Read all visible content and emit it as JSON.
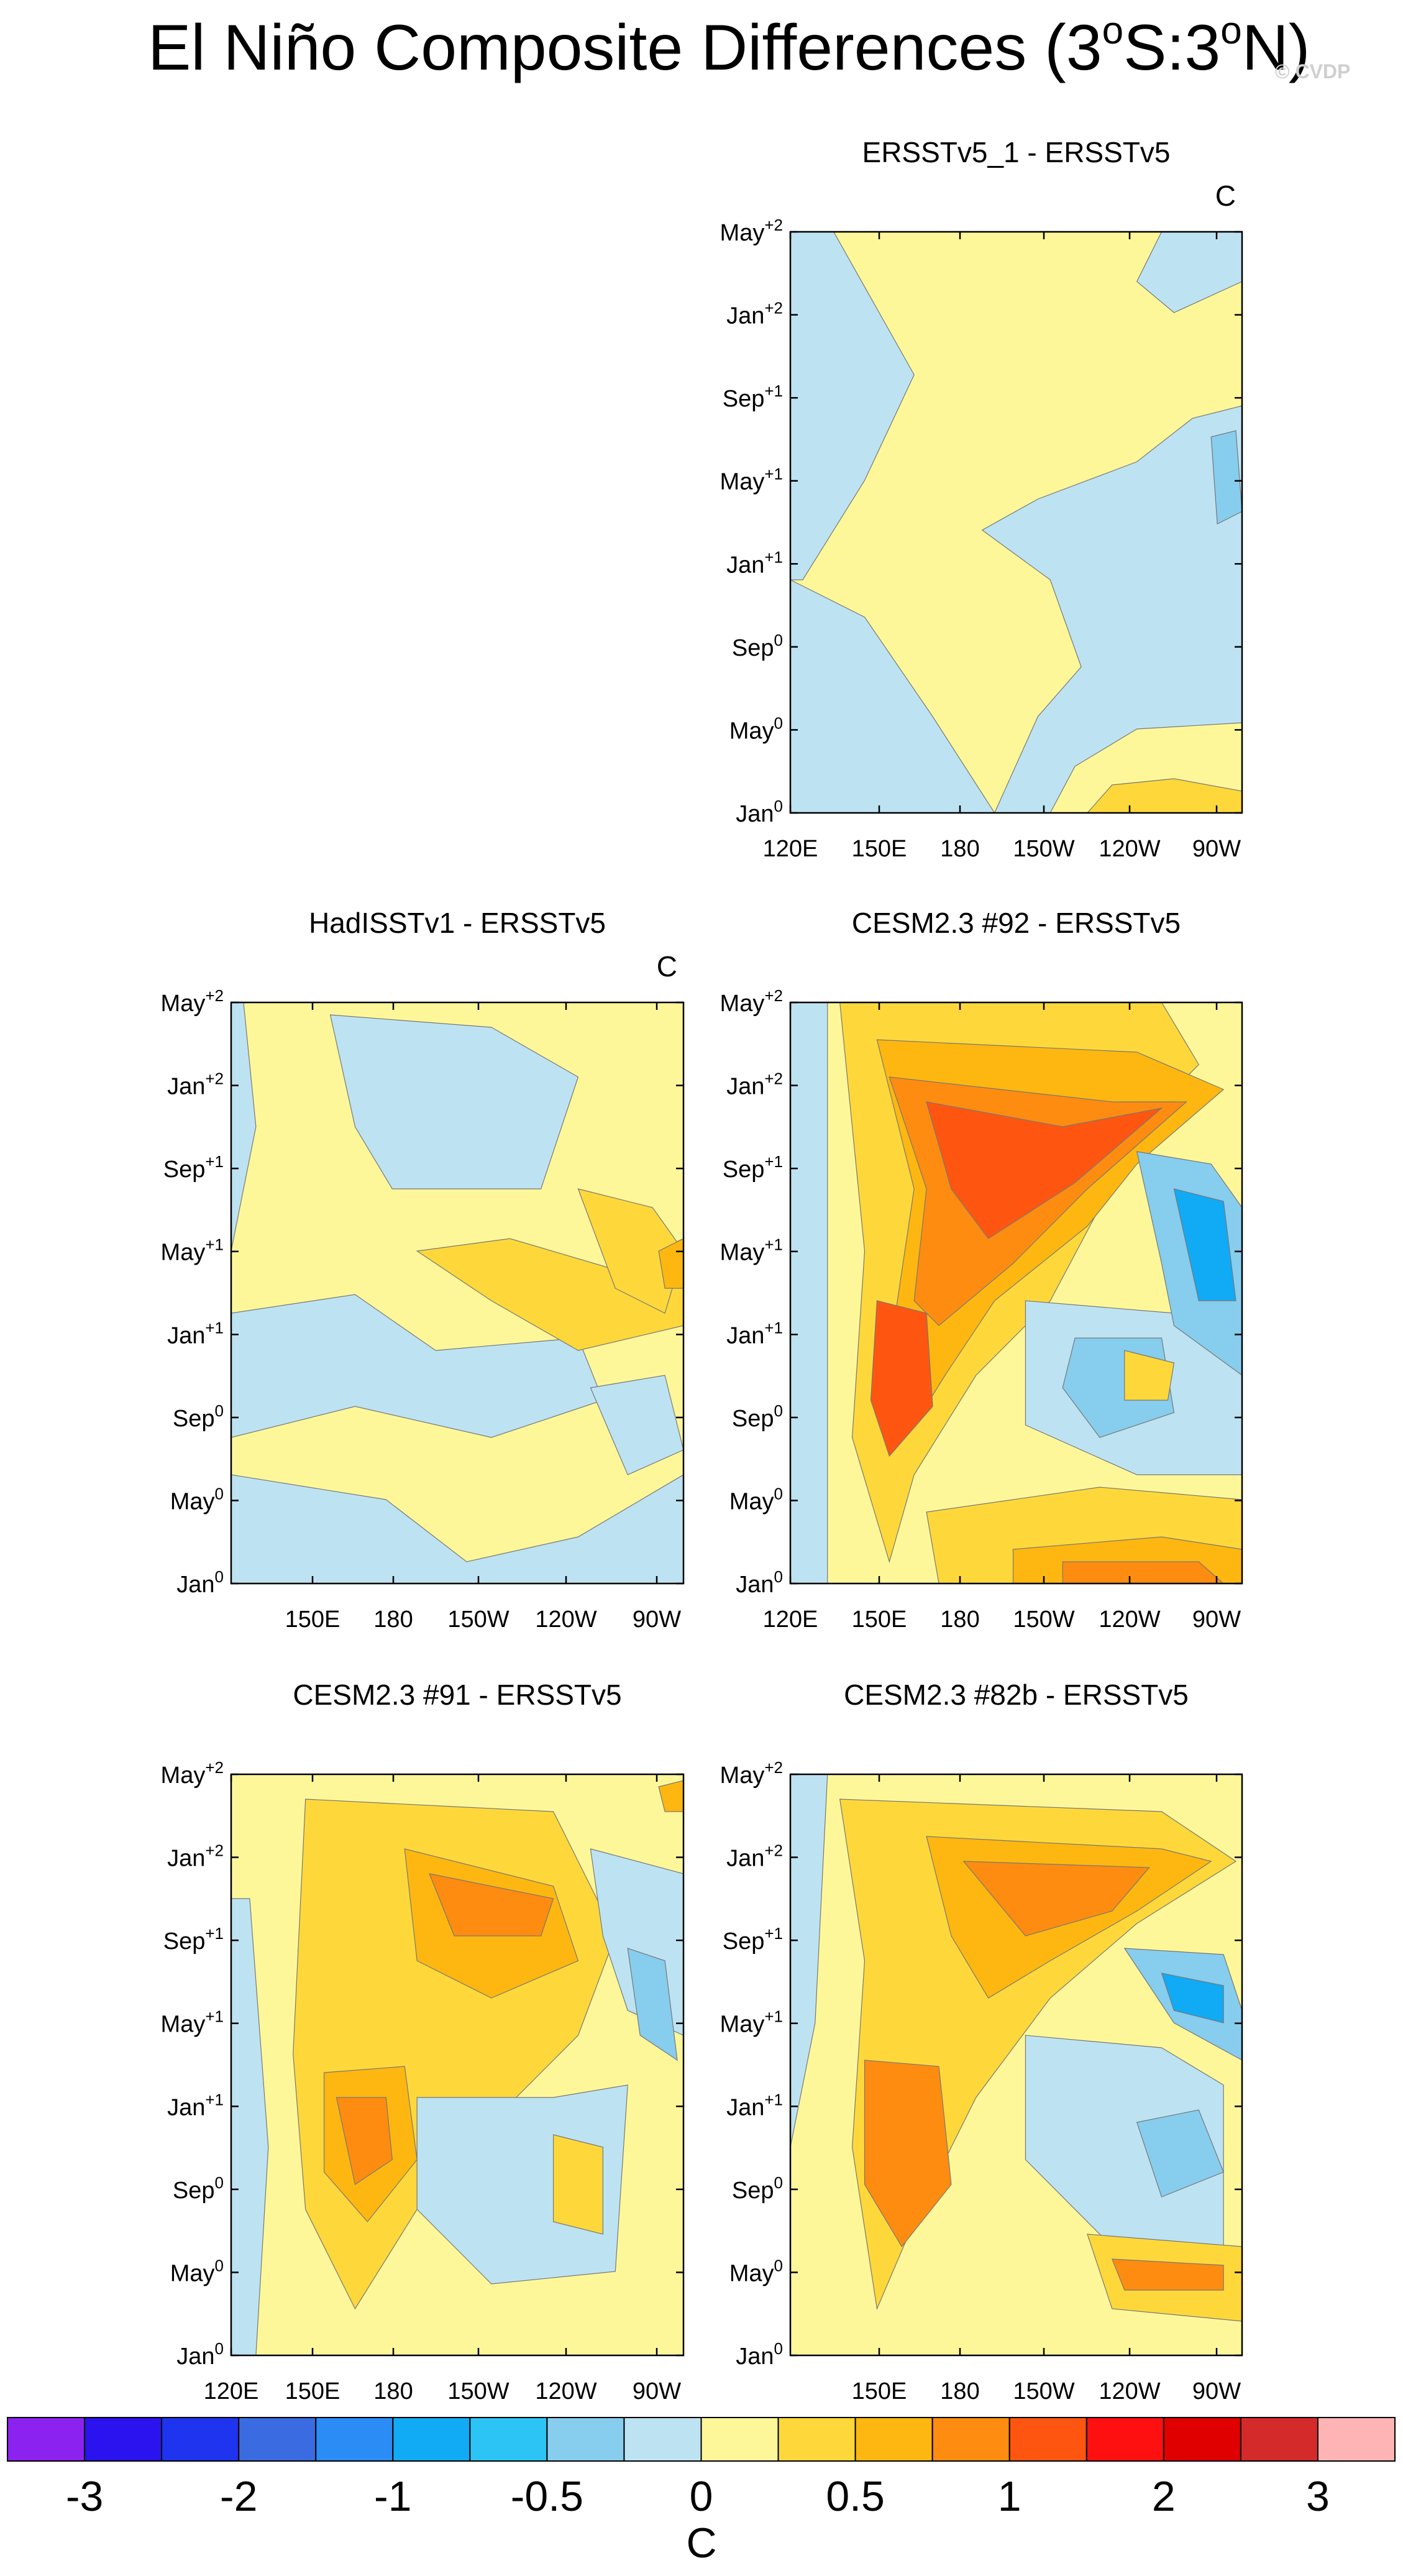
{
  "chart_data": {
    "type": "heatmap",
    "title": "El Niño Composite Differences (3°S:3°N)",
    "title_parts": {
      "main": "El Niño Composite Differences (3",
      "deg1": "o",
      "mid": "S:3",
      "deg2": "o",
      "end": "N)"
    },
    "watermark": "© CVDP",
    "colorbar": {
      "colors": [
        "#8c22f0",
        "#2a13ee",
        "#1e34ee",
        "#3b6be0",
        "#2b8cf5",
        "#10aaf5",
        "#2cc4f5",
        "#87cdee",
        "#bde3f2",
        "#fef799",
        "#fed83a",
        "#feb710",
        "#fe8c10",
        "#fe5610",
        "#fe1010",
        "#e00000",
        "#d42a2a",
        "#feb4b4"
      ],
      "labels": [
        "-3",
        "-2",
        "-1",
        "-0.5",
        "0",
        "0.5",
        "1",
        "2",
        "3"
      ],
      "unit": "C"
    },
    "y_ticks": [
      {
        "base": "May",
        "sup": "+2"
      },
      {
        "base": "Jan",
        "sup": "+2"
      },
      {
        "base": "Sep",
        "sup": "+1"
      },
      {
        "base": "May",
        "sup": "+1"
      },
      {
        "base": "Jan",
        "sup": "+1"
      },
      {
        "base": "Sep",
        "sup": "0"
      },
      {
        "base": "May",
        "sup": "0"
      },
      {
        "base": "Jan",
        "sup": "0"
      }
    ],
    "panels": [
      {
        "title": "ERSSTv5_1 - ERSSTv5",
        "unit": "C",
        "x_ticks": [
          "120E",
          "150E",
          "180",
          "150W",
          "120W",
          "90W"
        ]
      },
      {
        "title": "HadISSTv1 - ERSSTv5",
        "unit": "C",
        "x_ticks": [
          "150E",
          "180",
          "150W",
          "120W",
          "90W"
        ]
      },
      {
        "title": "CESM2.3 #92 - ERSSTv5",
        "unit": "",
        "x_ticks": [
          "120E",
          "150E",
          "180",
          "150W",
          "120W",
          "90W"
        ]
      },
      {
        "title": "CESM2.3 #91 - ERSSTv5",
        "unit": "",
        "x_ticks": [
          "120E",
          "150E",
          "180",
          "150W",
          "120W",
          "90W"
        ]
      },
      {
        "title": "CESM2.3 #82b - ERSSTv5",
        "unit": "",
        "x_ticks": [
          "150E",
          "180",
          "150W",
          "120W",
          "90W"
        ]
      }
    ]
  }
}
